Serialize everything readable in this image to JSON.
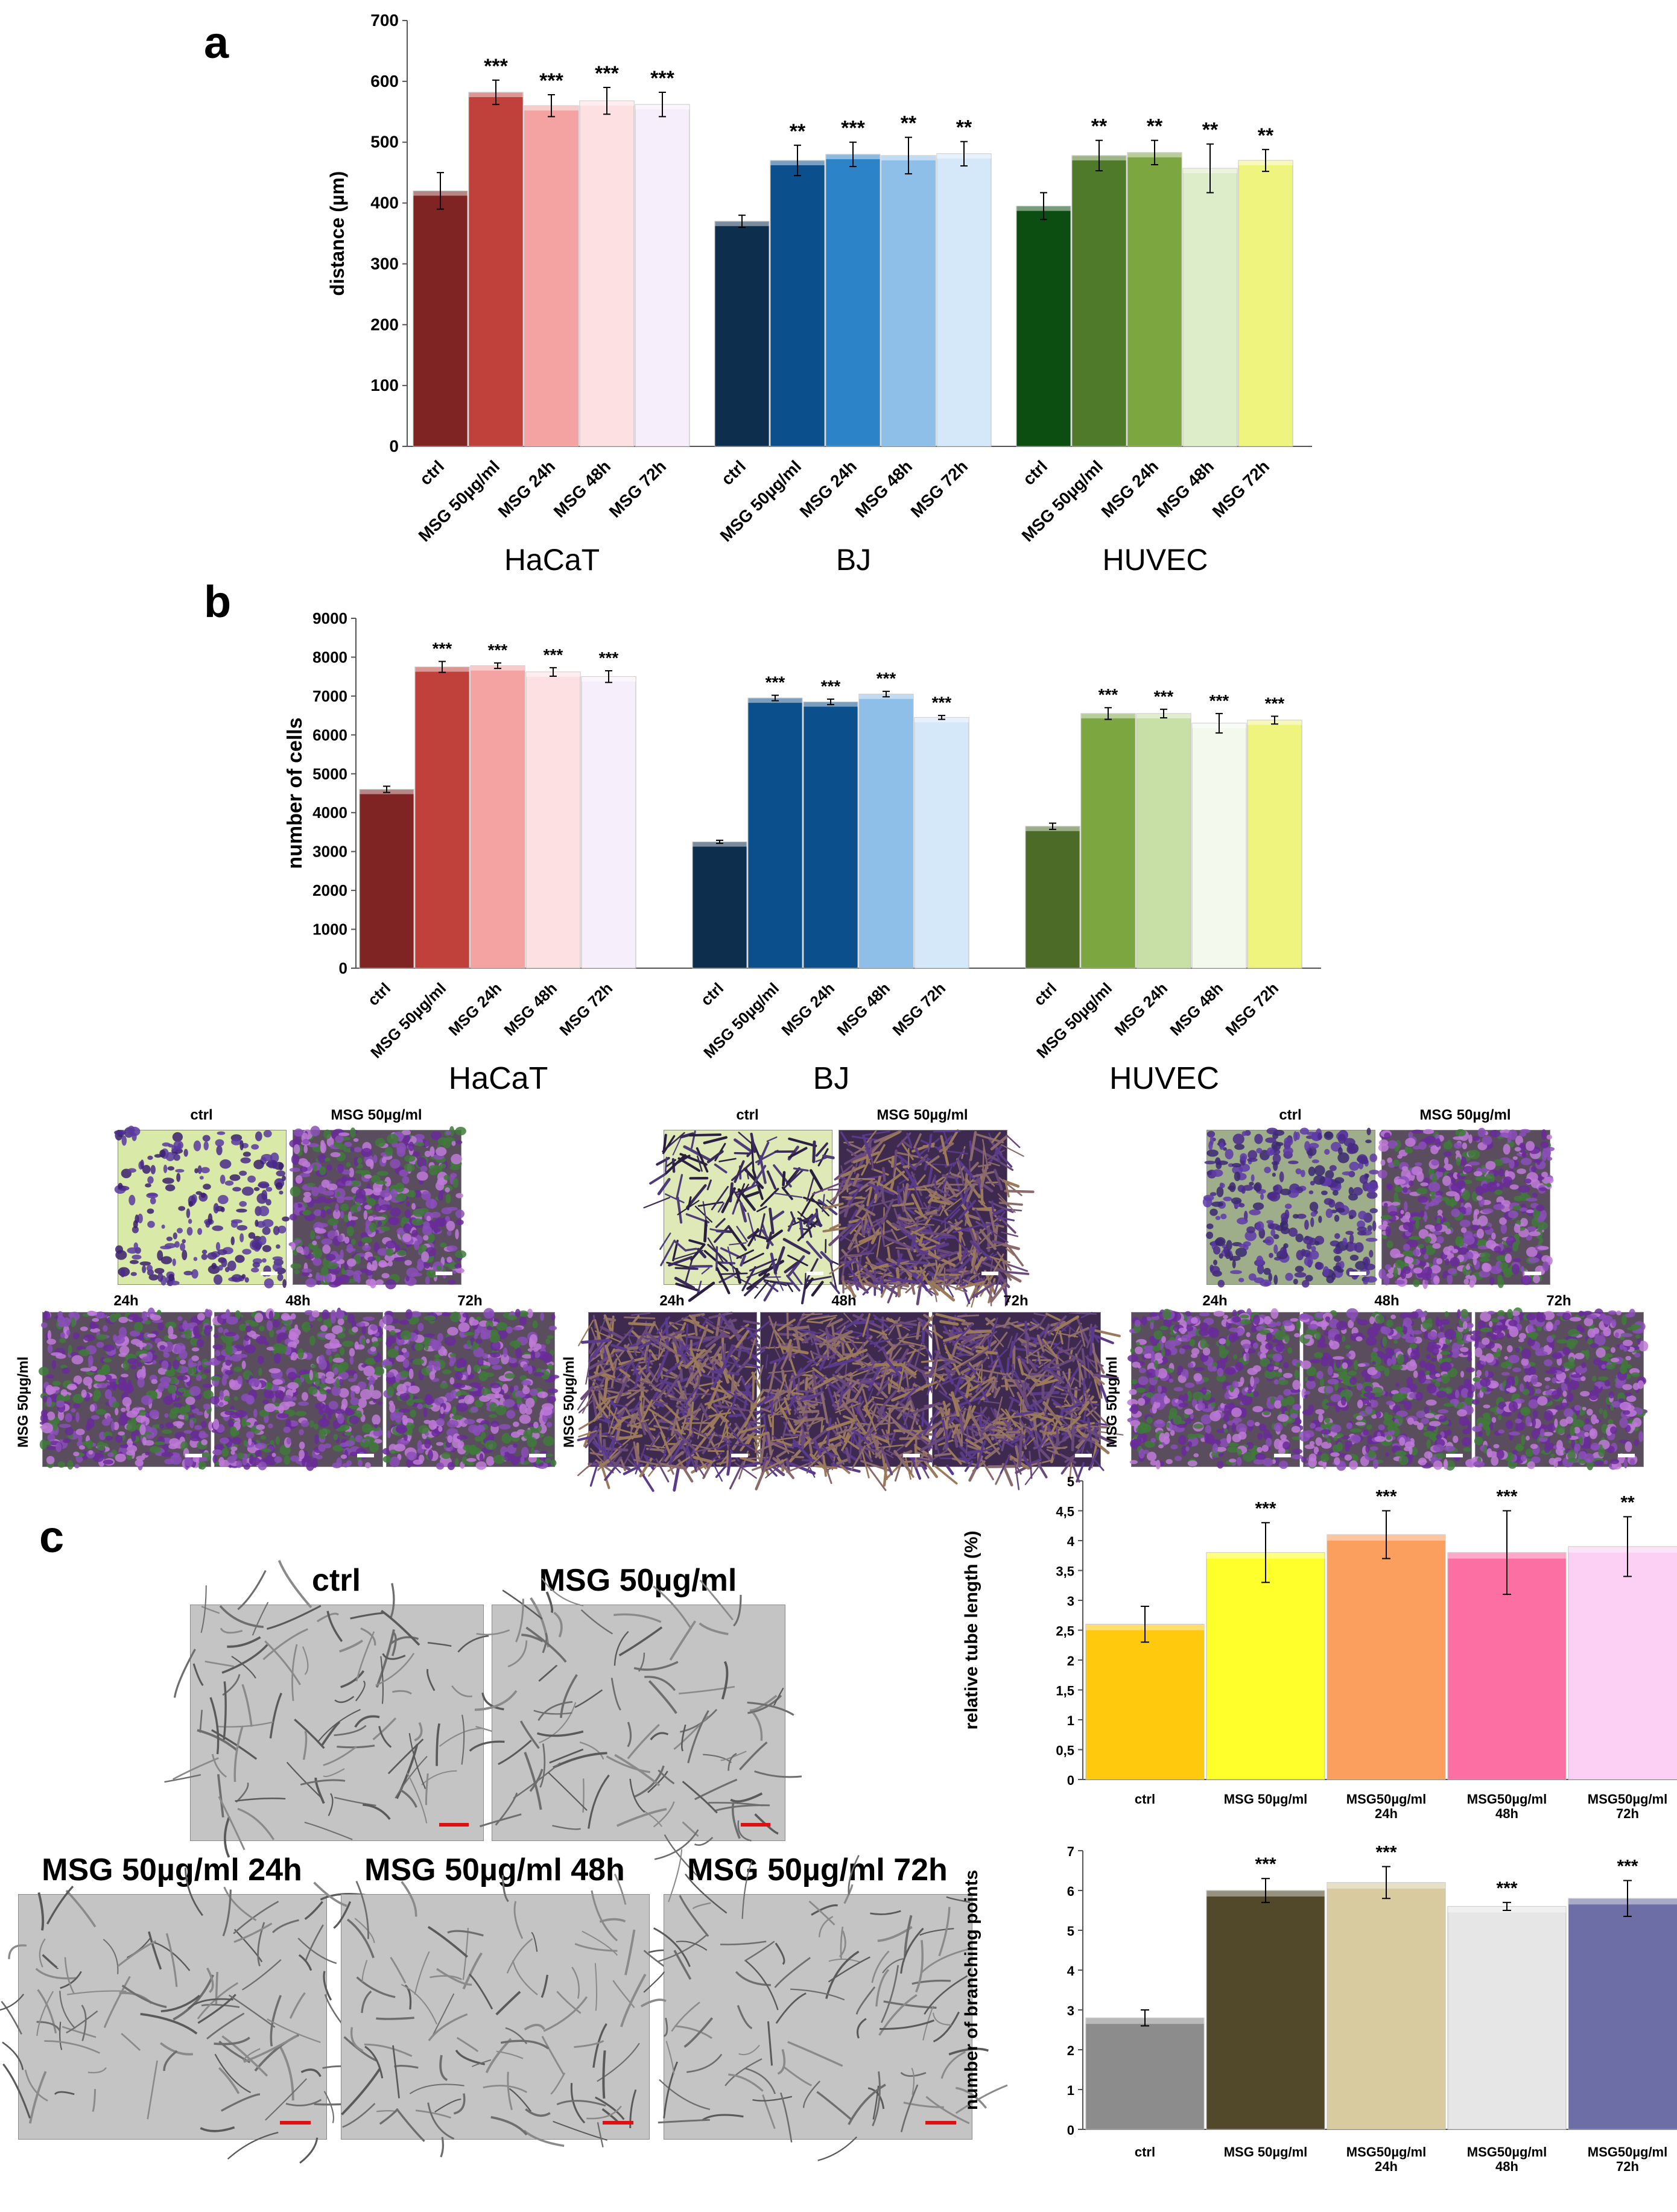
{
  "figure": {
    "panel_letters": [
      "a",
      "b",
      "c"
    ]
  },
  "chart_data": [
    {
      "id": "a",
      "type": "bar",
      "title": "",
      "xlabel": "",
      "ylabel": "distance (µm)",
      "ylim": [
        0,
        700
      ],
      "yticks": [
        "0",
        "100",
        "200",
        "300",
        "400",
        "500",
        "600",
        "700"
      ],
      "groups": [
        {
          "name": "HaCaT",
          "categories": [
            "ctrl",
            "MSG 50µg/ml",
            "MSG 24h",
            "MSG 48h",
            "MSG 72h"
          ],
          "values": [
            420,
            582,
            560,
            568,
            562
          ],
          "errors": [
            30,
            20,
            18,
            22,
            20
          ],
          "significance": [
            "",
            "***",
            "***",
            "***",
            "***"
          ],
          "colors": [
            "#7f2422",
            "#c0403c",
            "#f5a3a2",
            "#fde1e2",
            "#f7eefb"
          ]
        },
        {
          "name": "BJ",
          "categories": [
            "ctrl",
            "MSG 50µg/ml",
            "MSG 24h",
            "MSG 48h",
            "MSG 72h"
          ],
          "values": [
            370,
            470,
            480,
            478,
            481
          ],
          "errors": [
            10,
            25,
            20,
            30,
            20
          ],
          "significance": [
            "",
            "**",
            "***",
            "**",
            "**"
          ],
          "colors": [
            "#0d2e4d",
            "#0b4f8c",
            "#2d83c8",
            "#8ebfe8",
            "#d4e8fa"
          ]
        },
        {
          "name": "HUVEC",
          "categories": [
            "ctrl",
            "MSG 50µg/ml",
            "MSG 24h",
            "MSG 48h",
            "MSG 72h"
          ],
          "values": [
            395,
            478,
            483,
            457,
            470
          ],
          "errors": [
            22,
            25,
            20,
            40,
            18
          ],
          "significance": [
            "",
            "**",
            "**",
            "**",
            "**"
          ],
          "colors": [
            "#0c4d12",
            "#4f7a2a",
            "#7ca640",
            "#ddecc9",
            "#eef47e"
          ]
        }
      ]
    },
    {
      "id": "b",
      "type": "bar",
      "title": "",
      "xlabel": "",
      "ylabel": "number of cells",
      "ylim": [
        0,
        9000
      ],
      "yticks": [
        "0",
        "1000",
        "2000",
        "3000",
        "4000",
        "5000",
        "6000",
        "7000",
        "8000",
        "9000"
      ],
      "groups": [
        {
          "name": "HaCaT",
          "categories": [
            "ctrl",
            "MSG 50µg/ml",
            "MSG 24h",
            "MSG 48h",
            "MSG 72h"
          ],
          "values": [
            4600,
            7750,
            7780,
            7620,
            7500
          ],
          "errors": [
            80,
            140,
            70,
            110,
            150
          ],
          "significance": [
            "",
            "***",
            "***",
            "***",
            "***"
          ],
          "colors": [
            "#7f2422",
            "#c0403c",
            "#f5a3a2",
            "#fde1e2",
            "#f7eefb"
          ]
        },
        {
          "name": "BJ",
          "categories": [
            "ctrl",
            "MSG 50µg/ml",
            "MSG 24h",
            "MSG 48h",
            "MSG 72h"
          ],
          "values": [
            3250,
            6950,
            6850,
            7050,
            6450
          ],
          "errors": [
            40,
            70,
            70,
            70,
            50
          ],
          "significance": [
            "",
            "***",
            "***",
            "***",
            "***"
          ],
          "colors": [
            "#0d2e4d",
            "#0b4f8c",
            "#0b4f8c",
            "#8ebfe8",
            "#d4e8fa"
          ]
        },
        {
          "name": "HUVEC",
          "categories": [
            "ctrl",
            "MSG 50µg/ml",
            "MSG 24h",
            "MSG 48h",
            "MSG 72h"
          ],
          "values": [
            3650,
            6550,
            6550,
            6300,
            6380
          ],
          "errors": [
            80,
            150,
            110,
            250,
            100
          ],
          "significance": [
            "",
            "***",
            "***",
            "***",
            "***"
          ],
          "colors": [
            "#4c6b27",
            "#7ca640",
            "#c8e0a6",
            "#f4f9ee",
            "#eef47e"
          ]
        }
      ]
    },
    {
      "id": "c-tube",
      "type": "bar",
      "title": "",
      "xlabel": "",
      "ylabel": "relative tube length (%)",
      "ylim": [
        0,
        5
      ],
      "yticks": [
        "0",
        "0,5",
        "1",
        "1,5",
        "2",
        "2,5",
        "3",
        "3,5",
        "4",
        "4,5",
        "5"
      ],
      "categories": [
        "ctrl",
        "MSG 50µg/ml",
        "MSG50µg/ml\n24h",
        "MSG50µg/ml\n48h",
        "MSG50µg/ml\n72h"
      ],
      "values": [
        2.6,
        3.8,
        4.1,
        3.8,
        3.9
      ],
      "errors": [
        0.3,
        0.5,
        0.4,
        0.7,
        0.5
      ],
      "significance": [
        "",
        "***",
        "***",
        "***",
        "**"
      ],
      "colors": [
        "#ffc90e",
        "#ffff2b",
        "#fb9f5f",
        "#fb6fa3",
        "#fcd0f4"
      ]
    },
    {
      "id": "c-branch",
      "type": "bar",
      "title": "",
      "xlabel": "",
      "ylabel": "number of branching points",
      "ylim": [
        0,
        7
      ],
      "yticks": [
        "0",
        "1",
        "2",
        "3",
        "4",
        "5",
        "6",
        "7"
      ],
      "categories": [
        "ctrl",
        "MSG 50µg/ml",
        "MSG50µg/ml\n24h",
        "MSG50µg/ml\n48h",
        "MSG50µg/ml\n72h"
      ],
      "values": [
        2.8,
        6.0,
        6.2,
        5.6,
        5.8
      ],
      "errors": [
        0.2,
        0.3,
        0.4,
        0.1,
        0.45
      ],
      "significance": [
        "",
        "***",
        "***",
        "***",
        "***"
      ],
      "colors": [
        "#8c8c8c",
        "#52482a",
        "#d8cba0",
        "#e6e6e6",
        "#6e6ea6"
      ]
    }
  ],
  "panel_b_images": {
    "ctrl_label": "ctrl",
    "msg_label": "MSG 50µg/ml",
    "time_labels": [
      "24h",
      "48h",
      "72h"
    ],
    "side_label": "MSG 50µg/ml"
  },
  "panel_c_images": {
    "ctrl_label": "ctrl",
    "msg_label": "MSG 50µg/ml",
    "labels_24_48_72": [
      "MSG 50µg/ml  24h",
      "MSG 50µg/ml  48h",
      "MSG 50µg/ml  72h"
    ]
  }
}
